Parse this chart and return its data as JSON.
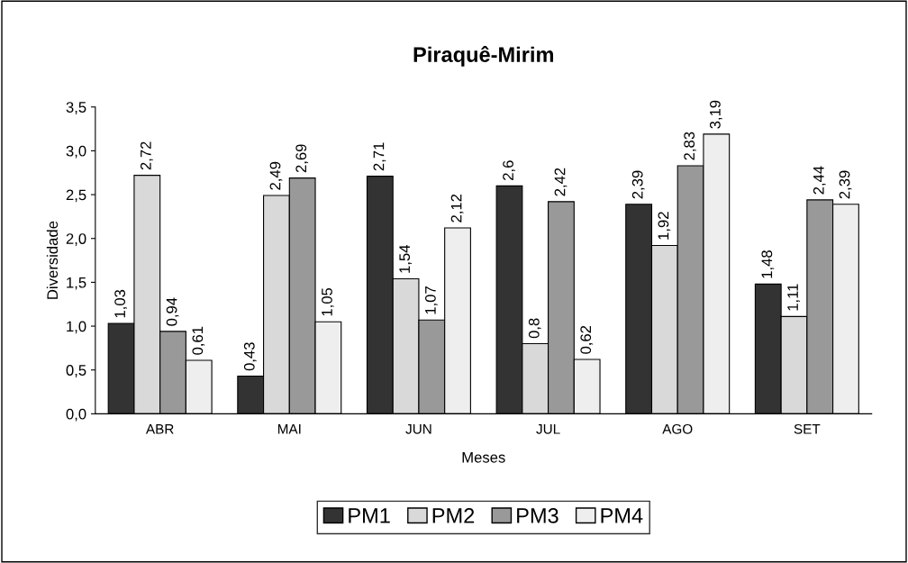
{
  "chart_data": {
    "type": "bar",
    "title": "Piraquê-Mirim",
    "xlabel": "Meses",
    "ylabel": "Diversidade",
    "categories": [
      "ABR",
      "MAI",
      "JUN",
      "JUL",
      "AGO",
      "SET"
    ],
    "series": [
      {
        "name": "PM1",
        "color": "#333333",
        "values": [
          1.03,
          0.43,
          2.71,
          2.6,
          2.39,
          1.48
        ],
        "value_labels": [
          "1,03",
          "0,43",
          "2,71",
          "2,6",
          "2,39",
          "1,48"
        ]
      },
      {
        "name": "PM2",
        "color": "#d9d9d9",
        "values": [
          2.72,
          2.49,
          1.54,
          0.8,
          1.92,
          1.11
        ],
        "value_labels": [
          "2,72",
          "2,49",
          "1,54",
          "0,8",
          "1,92",
          "1,11"
        ]
      },
      {
        "name": "PM3",
        "color": "#999999",
        "values": [
          0.94,
          2.69,
          1.07,
          2.42,
          2.83,
          2.44
        ],
        "value_labels": [
          "0,94",
          "2,69",
          "1,07",
          "2,42",
          "2,83",
          "2,44"
        ]
      },
      {
        "name": "PM4",
        "color": "#eeeeee",
        "values": [
          0.61,
          1.05,
          2.12,
          0.62,
          3.19,
          2.39
        ],
        "value_labels": [
          "0,61",
          "1,05",
          "2,12",
          "0,62",
          "3,19",
          "2,39"
        ]
      }
    ],
    "ylim": [
      0,
      3.5
    ],
    "yticks": [
      {
        "value": 0,
        "label": "0,0"
      },
      {
        "value": 0.5,
        "label": "0,5"
      },
      {
        "value": 1,
        "label": "1,0"
      },
      {
        "value": 1.5,
        "label": "1,5"
      },
      {
        "value": 2,
        "label": "2,0"
      },
      {
        "value": 2.5,
        "label": "2,5"
      },
      {
        "value": 3,
        "label": "3,0"
      },
      {
        "value": 3.5,
        "label": "3,5"
      }
    ],
    "grid": false,
    "legend": "bottom"
  }
}
